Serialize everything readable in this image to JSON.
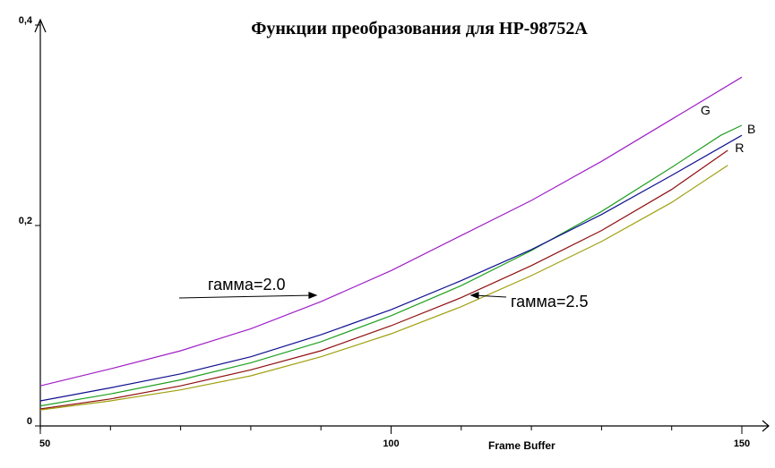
{
  "chart_data": {
    "type": "line",
    "title": "Функции преобразования для HP-98752A",
    "xlabel": "Frame Buffer",
    "ylabel": "",
    "xlim": [
      50,
      150
    ],
    "ylim": [
      0,
      0.4
    ],
    "x_ticks": [
      {
        "value": 50,
        "label": "50"
      },
      {
        "value": 100,
        "label": "100"
      },
      {
        "value": 150,
        "label": "150"
      }
    ],
    "x_minor_ticks": [
      60,
      70,
      80,
      90,
      110,
      120,
      130,
      140
    ],
    "y_ticks": [
      {
        "value": 0,
        "label": "0"
      },
      {
        "value": 0.2,
        "label": "0,2"
      },
      {
        "value": 0.4,
        "label": "0,4"
      }
    ],
    "grid": false,
    "series": [
      {
        "name": "",
        "color": "#a020c8",
        "x": [
          50,
          60,
          70,
          80,
          90,
          100,
          110,
          120,
          130,
          140,
          150
        ],
        "y": [
          0.04,
          0.057,
          0.075,
          0.097,
          0.124,
          0.155,
          0.19,
          0.225,
          0.264,
          0.306,
          0.348
        ]
      },
      {
        "name": "G",
        "color": "#20a020",
        "x": [
          50,
          60,
          70,
          80,
          90,
          100,
          110,
          120,
          130,
          140,
          147,
          150
        ],
        "y": [
          0.02,
          0.032,
          0.046,
          0.063,
          0.084,
          0.11,
          0.14,
          0.175,
          0.214,
          0.258,
          0.29,
          0.3
        ]
      },
      {
        "name": "B",
        "color": "#101090",
        "x": [
          50,
          60,
          70,
          80,
          90,
          100,
          110,
          120,
          130,
          140,
          150
        ],
        "y": [
          0.025,
          0.038,
          0.052,
          0.069,
          0.091,
          0.116,
          0.145,
          0.176,
          0.211,
          0.25,
          0.29
        ]
      },
      {
        "name": "R",
        "color": "#901010",
        "x": [
          50,
          60,
          70,
          80,
          90,
          100,
          110,
          120,
          130,
          140,
          148
        ],
        "y": [
          0.017,
          0.027,
          0.04,
          0.056,
          0.075,
          0.1,
          0.128,
          0.16,
          0.195,
          0.236,
          0.275
        ]
      },
      {
        "name": "",
        "color": "#a0a010",
        "x": [
          50,
          60,
          70,
          80,
          90,
          100,
          110,
          120,
          130,
          140,
          148
        ],
        "y": [
          0.016,
          0.025,
          0.036,
          0.05,
          0.069,
          0.092,
          0.119,
          0.15,
          0.184,
          0.223,
          0.26
        ]
      }
    ],
    "annotations": [
      {
        "text": "гамма=2.0",
        "points_to_x": 89,
        "points_to_y": 0.128
      },
      {
        "text": "гамма=2.5",
        "points_to_x": 112,
        "points_to_y": 0.13
      }
    ]
  }
}
